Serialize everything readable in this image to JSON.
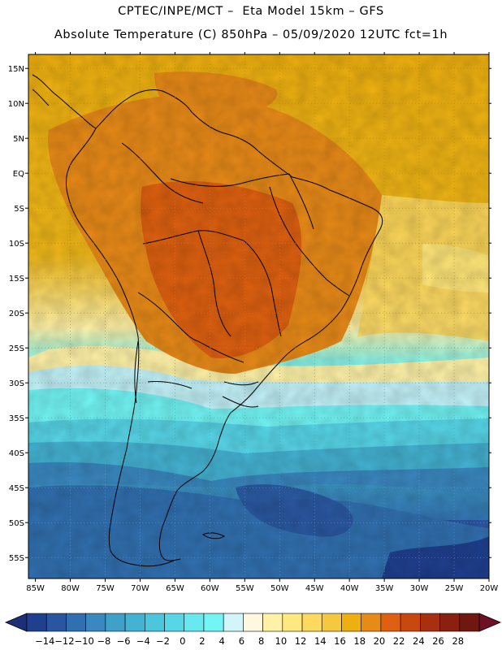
{
  "header": {
    "line1": "CPTEC/INPE/MCT –  Eta Model 15km – GFS",
    "line2": "Absolute Temperature (C) 850hPa – 05/09/2020 12UTC fct=1h"
  },
  "axes": {
    "lon_labels": [
      "85W",
      "80W",
      "75W",
      "70W",
      "65W",
      "60W",
      "55W",
      "50W",
      "45W",
      "40W",
      "35W",
      "30W",
      "25W",
      "20W"
    ],
    "lat_labels": [
      "15N",
      "10N",
      "5N",
      "EQ",
      "5S",
      "10S",
      "15S",
      "20S",
      "25S",
      "30S",
      "35S",
      "40S",
      "45S",
      "50S",
      "55S"
    ],
    "lon_range": [
      -86,
      -20
    ],
    "lat_range": [
      17,
      -58
    ]
  },
  "colorbar": {
    "labels": [
      "-14",
      "-12",
      "-10",
      "-8",
      "-6",
      "-4",
      "-2",
      "0",
      "2",
      "4",
      "6",
      "8",
      "10",
      "12",
      "14",
      "16",
      "18",
      "20",
      "22",
      "24",
      "26",
      "28"
    ],
    "colors": [
      "#1f3f8f",
      "#2a55a0",
      "#3170b0",
      "#3a88c0",
      "#3fa0c8",
      "#44b2d2",
      "#4cc6dc",
      "#57d6e8",
      "#6ae8f0",
      "#73f5f5",
      "#d2f5fa",
      "#fff8e0",
      "#fff2a8",
      "#ffe880",
      "#fdd960",
      "#f5c840",
      "#eeb010",
      "#e88a18",
      "#de6010",
      "#c84810",
      "#a83010",
      "#8a2010",
      "#701810"
    ],
    "arrow_low": "#1e2f7a",
    "arrow_high": "#6e0f24"
  }
}
